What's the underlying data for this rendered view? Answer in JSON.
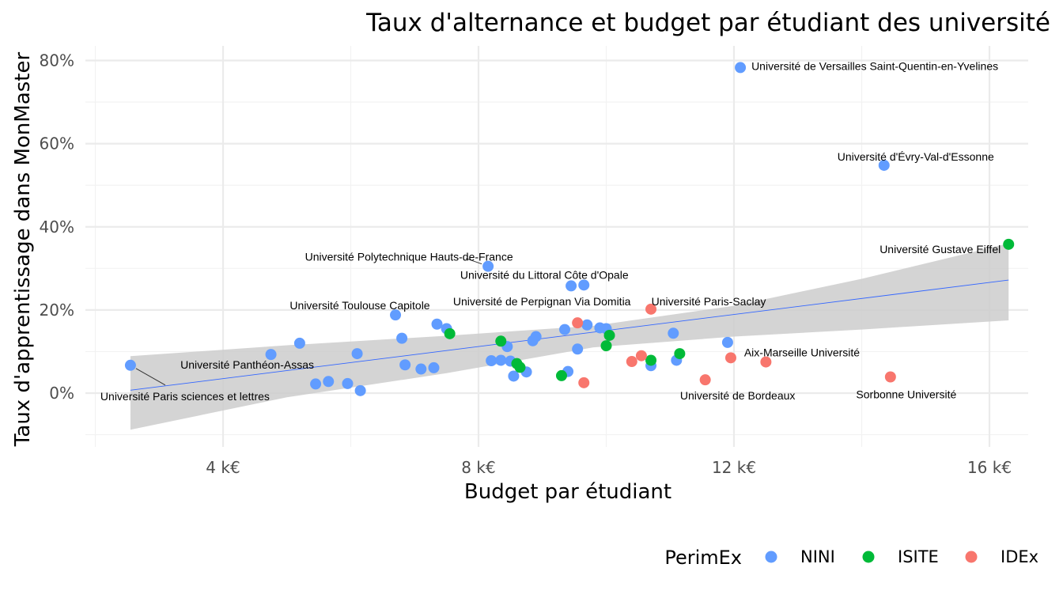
{
  "chart_data": {
    "type": "scatter",
    "title": "Taux d'alternance et budget par étudiant des université",
    "xlabel": "Budget par étudiant",
    "ylabel": "Taux d'apprentissage dans MonMaster",
    "xlim": [
      2000,
      17200
    ],
    "ylim": [
      -10,
      83
    ],
    "x_ticks": [
      {
        "value": 4000,
        "label": "4 k€"
      },
      {
        "value": 8000,
        "label": "8 k€"
      },
      {
        "value": 12000,
        "label": "12 k€"
      },
      {
        "value": 16000,
        "label": "16 k€"
      }
    ],
    "y_ticks": [
      {
        "value": 0,
        "label": "0%"
      },
      {
        "value": 20,
        "label": "20%"
      },
      {
        "value": 40,
        "label": "40%"
      },
      {
        "value": 60,
        "label": "60%"
      },
      {
        "value": 80,
        "label": "80%"
      }
    ],
    "grid": true,
    "legend": {
      "title": "PerimEx",
      "position": "bottom-right",
      "entries": [
        {
          "name": "NINI",
          "color": "#619CFF"
        },
        {
          "name": "ISITE",
          "color": "#00BA38"
        },
        {
          "name": "IDEx",
          "color": "#F8766D"
        }
      ]
    },
    "trend": {
      "line": [
        [
          2550,
          0.7
        ],
        [
          16300,
          27.2
        ]
      ],
      "band_upper": [
        [
          2550,
          8.9
        ],
        [
          5000,
          11.5
        ],
        [
          7500,
          13.8
        ],
        [
          9800,
          16.2
        ],
        [
          12000,
          21.0
        ],
        [
          14000,
          27.5
        ],
        [
          16300,
          36.0
        ]
      ],
      "band_lower": [
        [
          2550,
          -8.8
        ],
        [
          5000,
          -1.0
        ],
        [
          7500,
          4.8
        ],
        [
          9800,
          11.0
        ],
        [
          12000,
          13.6
        ],
        [
          14000,
          15.3
        ],
        [
          16300,
          17.5
        ]
      ],
      "line_color": "#3366FF",
      "band_color": "#cccccc"
    },
    "series": [
      {
        "name": "NINI",
        "color": "#619CFF",
        "points": [
          {
            "x": 12100,
            "y": 78.3
          },
          {
            "x": 14350,
            "y": 54.8
          },
          {
            "x": 8150,
            "y": 30.5
          },
          {
            "x": 9450,
            "y": 25.8
          },
          {
            "x": 9650,
            "y": 26.0
          },
          {
            "x": 6700,
            "y": 18.8
          },
          {
            "x": 7350,
            "y": 16.6
          },
          {
            "x": 7500,
            "y": 15.5
          },
          {
            "x": 6800,
            "y": 13.2
          },
          {
            "x": 8900,
            "y": 13.6
          },
          {
            "x": 8850,
            "y": 12.6
          },
          {
            "x": 9350,
            "y": 15.3
          },
          {
            "x": 9700,
            "y": 16.4
          },
          {
            "x": 9900,
            "y": 15.7
          },
          {
            "x": 10000,
            "y": 15.5
          },
          {
            "x": 11050,
            "y": 14.4
          },
          {
            "x": 11900,
            "y": 12.2
          },
          {
            "x": 2550,
            "y": 6.7
          },
          {
            "x": 4750,
            "y": 9.3
          },
          {
            "x": 5200,
            "y": 12.0
          },
          {
            "x": 6100,
            "y": 9.5
          },
          {
            "x": 8450,
            "y": 11.2
          },
          {
            "x": 9550,
            "y": 10.6
          },
          {
            "x": 5450,
            "y": 2.2
          },
          {
            "x": 5650,
            "y": 2.8
          },
          {
            "x": 5950,
            "y": 2.3
          },
          {
            "x": 6150,
            "y": 0.6
          },
          {
            "x": 6850,
            "y": 6.8
          },
          {
            "x": 7100,
            "y": 5.8
          },
          {
            "x": 7300,
            "y": 6.1
          },
          {
            "x": 8200,
            "y": 7.8
          },
          {
            "x": 8350,
            "y": 7.9
          },
          {
            "x": 8500,
            "y": 7.7
          },
          {
            "x": 8550,
            "y": 4.1
          },
          {
            "x": 8750,
            "y": 5.1
          },
          {
            "x": 9400,
            "y": 5.2
          },
          {
            "x": 10700,
            "y": 6.6
          },
          {
            "x": 11100,
            "y": 7.9
          }
        ]
      },
      {
        "name": "ISITE",
        "color": "#00BA38",
        "points": [
          {
            "x": 16300,
            "y": 35.8
          },
          {
            "x": 7550,
            "y": 14.3
          },
          {
            "x": 8350,
            "y": 12.5
          },
          {
            "x": 8600,
            "y": 7.1
          },
          {
            "x": 8650,
            "y": 6.2
          },
          {
            "x": 9300,
            "y": 4.2
          },
          {
            "x": 10000,
            "y": 11.4
          },
          {
            "x": 10050,
            "y": 13.9
          },
          {
            "x": 10700,
            "y": 7.9
          },
          {
            "x": 11150,
            "y": 9.5
          }
        ]
      },
      {
        "name": "IDEx",
        "color": "#F8766D",
        "points": [
          {
            "x": 10700,
            "y": 20.2
          },
          {
            "x": 9550,
            "y": 16.9
          },
          {
            "x": 9650,
            "y": 2.5
          },
          {
            "x": 10400,
            "y": 7.6
          },
          {
            "x": 10550,
            "y": 9.0
          },
          {
            "x": 11550,
            "y": 3.2
          },
          {
            "x": 11950,
            "y": 8.5
          },
          {
            "x": 12500,
            "y": 7.5
          },
          {
            "x": 14450,
            "y": 3.9
          }
        ]
      }
    ],
    "annotations": [
      {
        "text": "Université de Versailles Saint-Quentin-en-Yvelines",
        "x": 12100,
        "y": 78.3
      },
      {
        "text": "Université d'Évry-Val-d'Essonne",
        "x": 14350,
        "y": 54.8
      },
      {
        "text": "Université Gustave Eiffel",
        "x": 16300,
        "y": 35.8
      },
      {
        "text": "Université Polytechnique Hauts-de-France",
        "x": 8150,
        "y": 30.5
      },
      {
        "text": "Université du Littoral Côte d'Opale",
        "x": 9650,
        "y": 26.0
      },
      {
        "text": "Université Toulouse Capitole",
        "x": 6700,
        "y": 18.8
      },
      {
        "text": "Université de Perpignan Via Domitia",
        "x": 9550,
        "y": 16.9
      },
      {
        "text": "Université Paris-Saclay",
        "x": 10700,
        "y": 20.2
      },
      {
        "text": "Aix-Marseille Université",
        "x": 11950,
        "y": 8.5
      },
      {
        "text": "Université Panthéon-Assas",
        "x": 4750,
        "y": 9.3
      },
      {
        "text": "Université Paris sciences et lettres",
        "x": 2550,
        "y": 6.7
      },
      {
        "text": "Université de Bordeaux",
        "x": 11550,
        "y": 3.2
      },
      {
        "text": "Sorbonne Université",
        "x": 14450,
        "y": 3.9
      }
    ]
  }
}
